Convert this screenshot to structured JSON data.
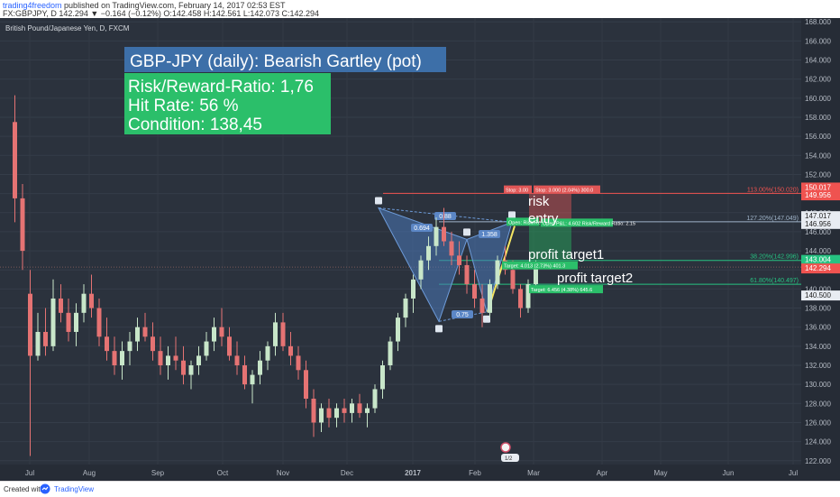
{
  "header": {
    "author": "trading4freedom",
    "published": " published on TradingView.com, February 14, 2017 02:53 EST",
    "symbol_line": "FX:GBPJPY, D  142.294 ▼ −0.164 (−0.12%) O:142.458 H:142.561 L:142.073 C:142.294"
  },
  "footer": {
    "created_with": "Created with",
    "brand": "TradingView"
  },
  "chart_data": {
    "type": "candlestick",
    "instrument": "British Pound/Japanese Yen, D, FXCM",
    "ylim": [
      121.6,
      168.4
    ],
    "y_ticks": [
      122,
      124,
      126,
      128,
      130,
      132,
      134,
      136,
      138,
      140,
      142,
      144,
      146,
      148,
      150,
      152,
      154,
      156,
      158,
      160,
      162,
      164,
      166,
      168
    ],
    "x_ticks": [
      "Jul",
      "Aug",
      "Sep",
      "Oct",
      "Nov",
      "Dec",
      "2017",
      "Feb",
      "Mar",
      "Apr",
      "May",
      "Jun",
      "Jul"
    ],
    "price_labels": [
      {
        "value": "150.017",
        "color": "#ef5350"
      },
      {
        "value": "149.956",
        "color": "#ef5350"
      },
      {
        "value": "147.017",
        "color": "#e8ecf2"
      },
      {
        "value": "146.956",
        "color": "#e8ecf2"
      },
      {
        "value": "143.004",
        "color": "#26c281"
      },
      {
        "value": "142.294",
        "color": "#ef5350"
      },
      {
        "value": "140.500",
        "color": "#e8ecf2"
      }
    ],
    "series": [
      {
        "x": 1,
        "o": 157.5,
        "h": 160.3,
        "l": 147.0,
        "c": 149.5
      },
      {
        "x": 2,
        "o": 149.5,
        "h": 151.0,
        "l": 142.0,
        "c": 144.0
      },
      {
        "x": 3,
        "o": 139.5,
        "h": 142.0,
        "l": 122.5,
        "c": 133.0
      },
      {
        "x": 4,
        "o": 133.0,
        "h": 137.5,
        "l": 132.5,
        "c": 135.5
      },
      {
        "x": 5,
        "o": 135.5,
        "h": 138.0,
        "l": 133.0,
        "c": 134.0
      },
      {
        "x": 6,
        "o": 134.0,
        "h": 141.0,
        "l": 133.5,
        "c": 139.0
      },
      {
        "x": 7,
        "o": 139.0,
        "h": 140.5,
        "l": 136.5,
        "c": 137.5
      },
      {
        "x": 8,
        "o": 137.5,
        "h": 139.0,
        "l": 134.5,
        "c": 135.5
      },
      {
        "x": 9,
        "o": 135.5,
        "h": 138.5,
        "l": 134.0,
        "c": 137.5
      },
      {
        "x": 10,
        "o": 137.5,
        "h": 140.5,
        "l": 136.5,
        "c": 139.5
      },
      {
        "x": 11,
        "o": 139.5,
        "h": 141.5,
        "l": 137.0,
        "c": 138.0
      },
      {
        "x": 12,
        "o": 138.0,
        "h": 139.0,
        "l": 134.0,
        "c": 135.0
      },
      {
        "x": 13,
        "o": 135.0,
        "h": 137.0,
        "l": 132.5,
        "c": 133.5
      },
      {
        "x": 14,
        "o": 133.5,
        "h": 135.0,
        "l": 131.0,
        "c": 132.0
      },
      {
        "x": 15,
        "o": 132.0,
        "h": 134.5,
        "l": 130.5,
        "c": 133.5
      },
      {
        "x": 16,
        "o": 133.5,
        "h": 135.5,
        "l": 132.0,
        "c": 134.5
      },
      {
        "x": 17,
        "o": 134.5,
        "h": 137.0,
        "l": 133.5,
        "c": 136.0
      },
      {
        "x": 18,
        "o": 136.0,
        "h": 137.5,
        "l": 134.5,
        "c": 135.0
      },
      {
        "x": 19,
        "o": 135.0,
        "h": 136.5,
        "l": 132.5,
        "c": 133.5
      },
      {
        "x": 20,
        "o": 133.5,
        "h": 135.0,
        "l": 131.0,
        "c": 132.0
      },
      {
        "x": 21,
        "o": 132.0,
        "h": 134.0,
        "l": 130.5,
        "c": 133.0
      },
      {
        "x": 22,
        "o": 133.0,
        "h": 135.0,
        "l": 131.5,
        "c": 132.5
      },
      {
        "x": 23,
        "o": 132.5,
        "h": 134.0,
        "l": 130.0,
        "c": 131.0
      },
      {
        "x": 24,
        "o": 131.0,
        "h": 132.5,
        "l": 129.5,
        "c": 132.0
      },
      {
        "x": 25,
        "o": 132.0,
        "h": 134.0,
        "l": 131.0,
        "c": 133.0
      },
      {
        "x": 26,
        "o": 133.0,
        "h": 135.5,
        "l": 132.5,
        "c": 134.5
      },
      {
        "x": 27,
        "o": 134.5,
        "h": 137.0,
        "l": 133.5,
        "c": 136.0
      },
      {
        "x": 28,
        "o": 136.0,
        "h": 138.0,
        "l": 134.0,
        "c": 135.0
      },
      {
        "x": 29,
        "o": 135.0,
        "h": 136.0,
        "l": 132.5,
        "c": 133.0
      },
      {
        "x": 30,
        "o": 133.0,
        "h": 134.5,
        "l": 131.0,
        "c": 132.0
      },
      {
        "x": 31,
        "o": 132.0,
        "h": 133.0,
        "l": 129.5,
        "c": 130.0
      },
      {
        "x": 32,
        "o": 130.0,
        "h": 131.5,
        "l": 128.0,
        "c": 131.0
      },
      {
        "x": 33,
        "o": 131.0,
        "h": 133.5,
        "l": 130.0,
        "c": 132.5
      },
      {
        "x": 34,
        "o": 132.5,
        "h": 134.5,
        "l": 131.5,
        "c": 134.0
      },
      {
        "x": 35,
        "o": 134.0,
        "h": 137.5,
        "l": 133.0,
        "c": 136.5
      },
      {
        "x": 36,
        "o": 136.5,
        "h": 137.5,
        "l": 133.5,
        "c": 134.0
      },
      {
        "x": 37,
        "o": 134.0,
        "h": 135.5,
        "l": 132.0,
        "c": 133.0
      },
      {
        "x": 38,
        "o": 133.0,
        "h": 134.0,
        "l": 130.5,
        "c": 131.5
      },
      {
        "x": 39,
        "o": 131.5,
        "h": 132.5,
        "l": 127.5,
        "c": 128.5
      },
      {
        "x": 40,
        "o": 128.5,
        "h": 129.5,
        "l": 124.5,
        "c": 126.0
      },
      {
        "x": 41,
        "o": 126.0,
        "h": 128.0,
        "l": 125.0,
        "c": 127.5
      },
      {
        "x": 42,
        "o": 127.5,
        "h": 128.5,
        "l": 125.5,
        "c": 126.5
      },
      {
        "x": 43,
        "o": 126.5,
        "h": 128.0,
        "l": 125.5,
        "c": 127.5
      },
      {
        "x": 44,
        "o": 127.5,
        "h": 128.5,
        "l": 126.0,
        "c": 127.0
      },
      {
        "x": 45,
        "o": 127.0,
        "h": 128.5,
        "l": 126.0,
        "c": 128.0
      },
      {
        "x": 46,
        "o": 128.0,
        "h": 129.0,
        "l": 126.5,
        "c": 127.0
      },
      {
        "x": 47,
        "o": 127.0,
        "h": 128.0,
        "l": 125.5,
        "c": 127.5
      },
      {
        "x": 48,
        "o": 127.5,
        "h": 130.0,
        "l": 127.0,
        "c": 129.5
      },
      {
        "x": 49,
        "o": 129.5,
        "h": 132.5,
        "l": 128.5,
        "c": 132.0
      },
      {
        "x": 50,
        "o": 132.0,
        "h": 135.0,
        "l": 131.5,
        "c": 134.5
      },
      {
        "x": 51,
        "o": 134.5,
        "h": 137.5,
        "l": 133.5,
        "c": 137.0
      },
      {
        "x": 52,
        "o": 137.0,
        "h": 139.5,
        "l": 136.0,
        "c": 139.0
      },
      {
        "x": 53,
        "o": 139.0,
        "h": 141.5,
        "l": 137.5,
        "c": 141.0
      },
      {
        "x": 54,
        "o": 141.0,
        "h": 143.5,
        "l": 140.0,
        "c": 143.0
      },
      {
        "x": 55,
        "o": 143.0,
        "h": 145.5,
        "l": 142.0,
        "c": 144.5
      },
      {
        "x": 56,
        "o": 144.5,
        "h": 147.5,
        "l": 143.5,
        "c": 146.5
      },
      {
        "x": 57,
        "o": 146.5,
        "h": 148.5,
        "l": 144.5,
        "c": 145.0
      },
      {
        "x": 58,
        "o": 145.0,
        "h": 146.0,
        "l": 142.5,
        "c": 143.5
      },
      {
        "x": 59,
        "o": 143.5,
        "h": 145.0,
        "l": 141.5,
        "c": 142.5
      },
      {
        "x": 60,
        "o": 142.5,
        "h": 143.5,
        "l": 139.5,
        "c": 140.5
      },
      {
        "x": 61,
        "o": 140.5,
        "h": 142.0,
        "l": 138.0,
        "c": 139.0
      },
      {
        "x": 62,
        "o": 139.0,
        "h": 140.5,
        "l": 136.0,
        "c": 137.5
      },
      {
        "x": 63,
        "o": 137.5,
        "h": 141.0,
        "l": 137.0,
        "c": 140.5
      },
      {
        "x": 64,
        "o": 140.5,
        "h": 143.5,
        "l": 140.0,
        "c": 143.0
      },
      {
        "x": 65,
        "o": 143.0,
        "h": 144.5,
        "l": 141.5,
        "c": 142.0
      },
      {
        "x": 66,
        "o": 142.0,
        "h": 143.0,
        "l": 139.5,
        "c": 140.0
      },
      {
        "x": 67,
        "o": 140.0,
        "h": 140.5,
        "l": 137.0,
        "c": 138.0
      },
      {
        "x": 68,
        "o": 138.0,
        "h": 141.0,
        "l": 137.5,
        "c": 140.5
      },
      {
        "x": 69,
        "o": 140.5,
        "h": 143.0,
        "l": 140.0,
        "c": 142.3
      }
    ],
    "annotations": {
      "title": "GBP-JPY (daily): Bearish Gartley (pot)",
      "stats": [
        "Risk/Reward-Ratio: 1,76",
        "Hit Rate: 56 %",
        "Condition: 138,45"
      ],
      "labels": [
        "risk",
        "entry",
        "profit target1",
        "profit target2"
      ],
      "fib_levels": [
        {
          "label": "113.00%(150.020)",
          "price": 150.02,
          "color": "#ef5350"
        },
        {
          "label": "127.20%(147.049)",
          "price": 147.049,
          "color": "#9fb3c8"
        },
        {
          "label": "38.20%(142.996)",
          "price": 142.996,
          "color": "#26c281"
        },
        {
          "label": "61.80%(140.497)",
          "price": 140.497,
          "color": "#26c281"
        }
      ],
      "pattern": {
        "points": [
          "X",
          "A",
          "B",
          "C",
          "D"
        ],
        "ratios": [
          "0.88",
          "0.694",
          "0.75",
          "1.358"
        ],
        "prices": [
          148.5,
          136.6,
          145.2,
          137.6,
          147.0
        ]
      },
      "boxes": {
        "stop1": "Stop: 3.00",
        "stop2": "Stop: 3.000 (2.04%) 300.0",
        "open1": "Open: Risk/Rew",
        "open2": "Open P&L: 4.602 Risk/Reward Ratio: 2.15",
        "target1": "Target: 4.013 (2.73%) 401.3",
        "target2": "Target: 6.456 (4.38%) 645.6"
      },
      "event_marker": "1/2"
    }
  }
}
